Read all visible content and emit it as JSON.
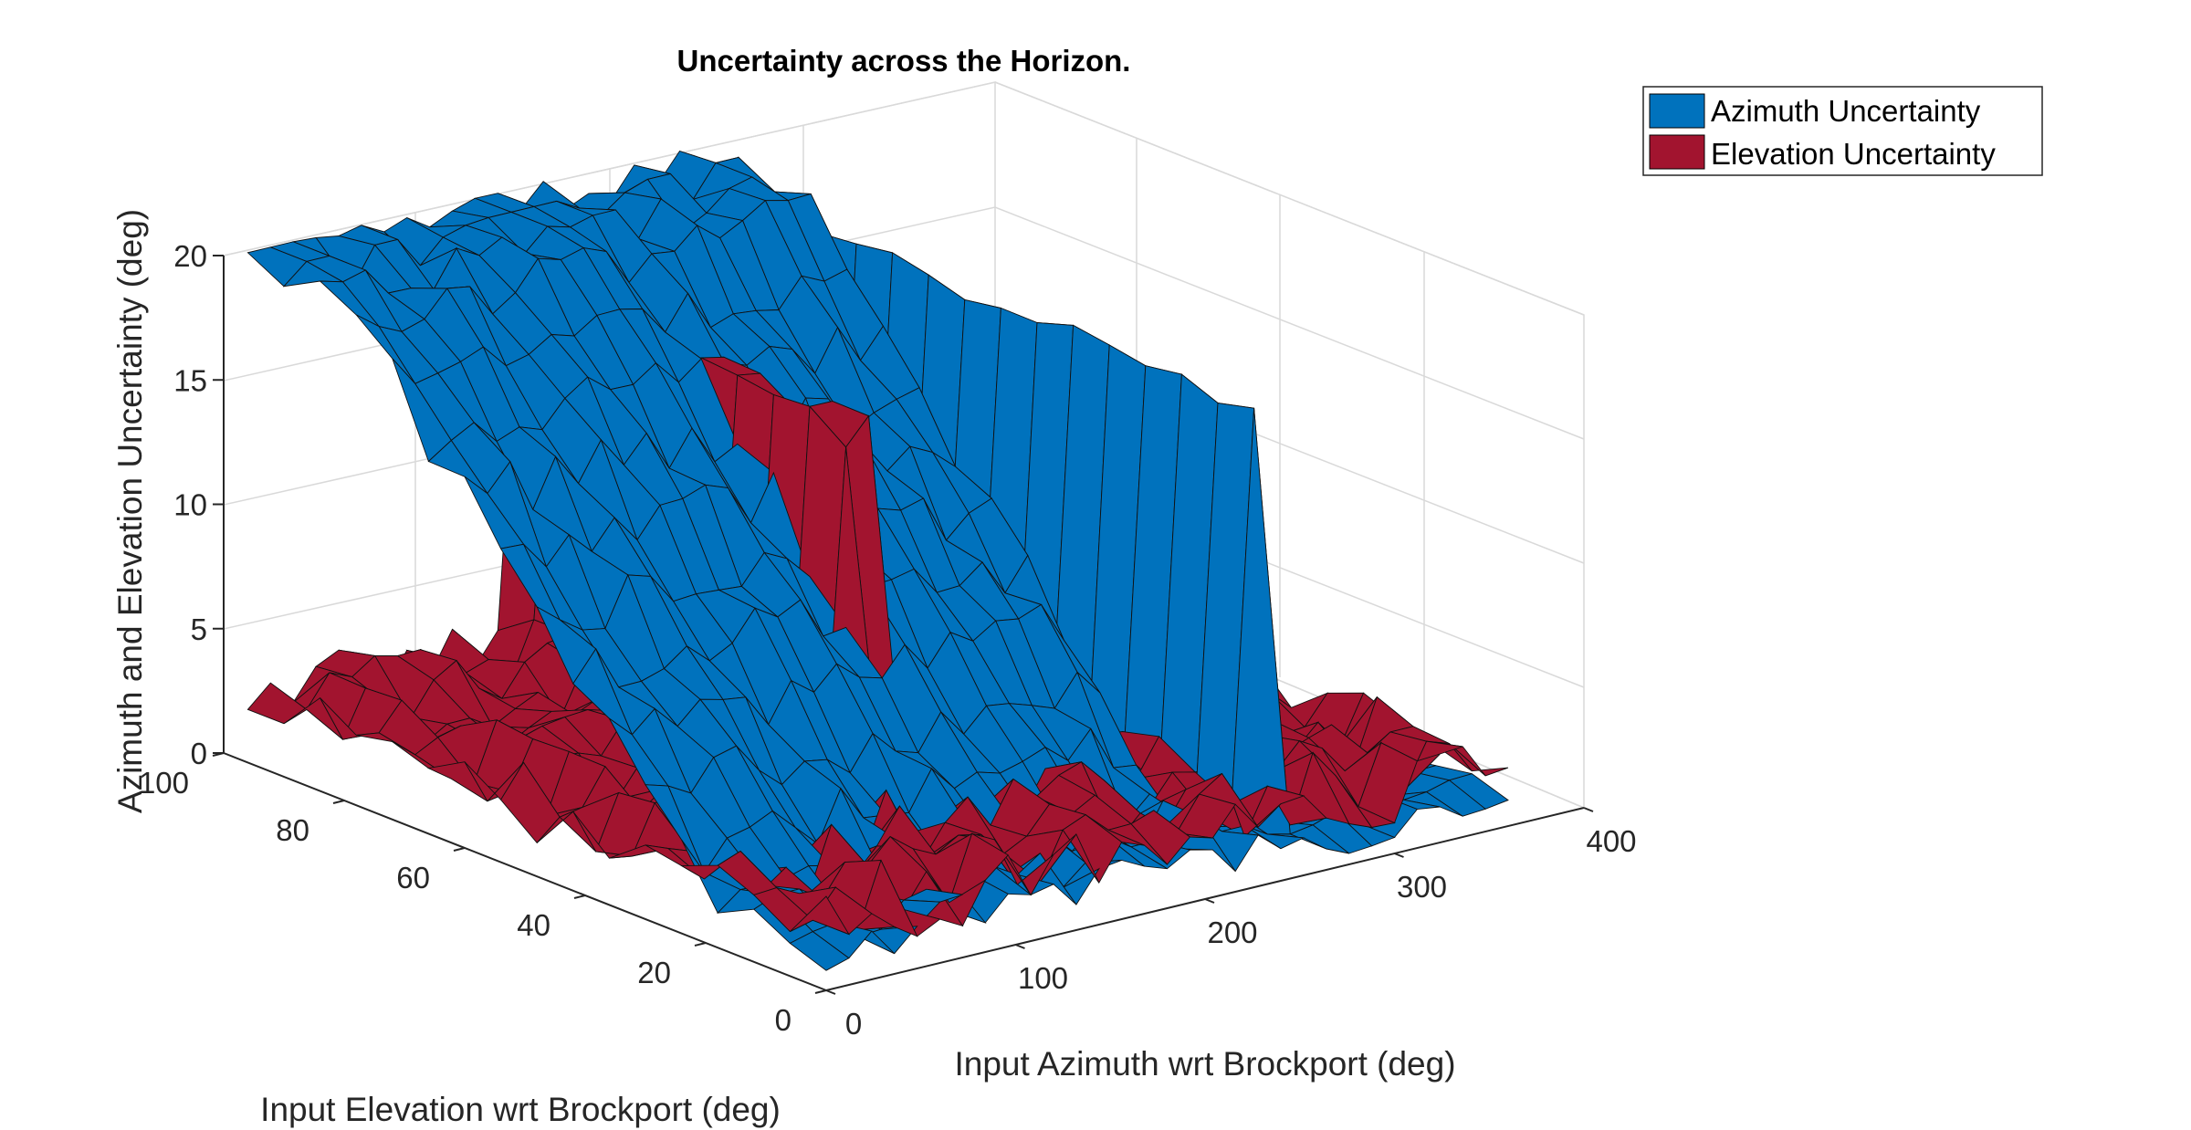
{
  "chart_data": {
    "type": "surface3d",
    "title": "Uncertainty across the Horizon.",
    "xlabel": "Input Azimuth wrt Brockport (deg)",
    "ylabel": "Input Elevation wrt Brockport (deg)",
    "zlabel": "Azimuth and Elevation Uncertainty (deg)",
    "x_ticks": [
      "0",
      "100",
      "200",
      "300",
      "400"
    ],
    "y_ticks": [
      "0",
      "20",
      "40",
      "60",
      "80",
      "100"
    ],
    "z_ticks": [
      "0",
      "5",
      "10",
      "15",
      "20"
    ],
    "xlim": [
      0,
      400
    ],
    "ylim": [
      0,
      100
    ],
    "zlim": [
      0,
      20
    ],
    "grid": true,
    "legend_position": "top-right",
    "series": [
      {
        "name": "Azimuth Uncertainty",
        "color": "#0072BD"
      },
      {
        "name": "Elevation Uncertainty",
        "color": "#A2142F"
      }
    ]
  }
}
